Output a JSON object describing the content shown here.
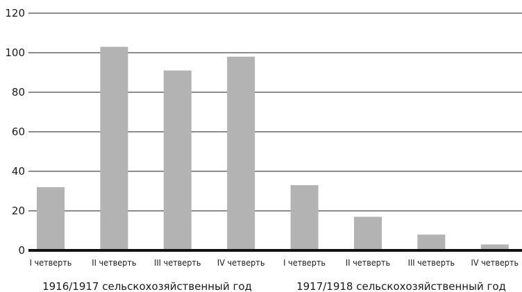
{
  "chart_data": {
    "type": "bar",
    "title": "",
    "xlabel": "",
    "ylabel": "",
    "ylim": [
      0,
      120
    ],
    "yticks": [
      0,
      20,
      40,
      60,
      80,
      100,
      120
    ],
    "grid": true,
    "categories": [
      "I четверть",
      "II четверть",
      "III четверть",
      "IV четверть",
      "I четверть",
      "II четверть",
      "III четверть",
      "IV четверть"
    ],
    "values": [
      32,
      103,
      91,
      98,
      33,
      17,
      8,
      3
    ],
    "groups": [
      {
        "label": "1916/1917 сельскохозяйственный год",
        "span": [
          0,
          3
        ]
      },
      {
        "label": "1917/1918 сельскохозяйственный год",
        "span": [
          4,
          7
        ]
      }
    ],
    "colors": {
      "bar": "#b3b3b3",
      "grid": "#1a1a1a",
      "axis": "#111111"
    }
  }
}
